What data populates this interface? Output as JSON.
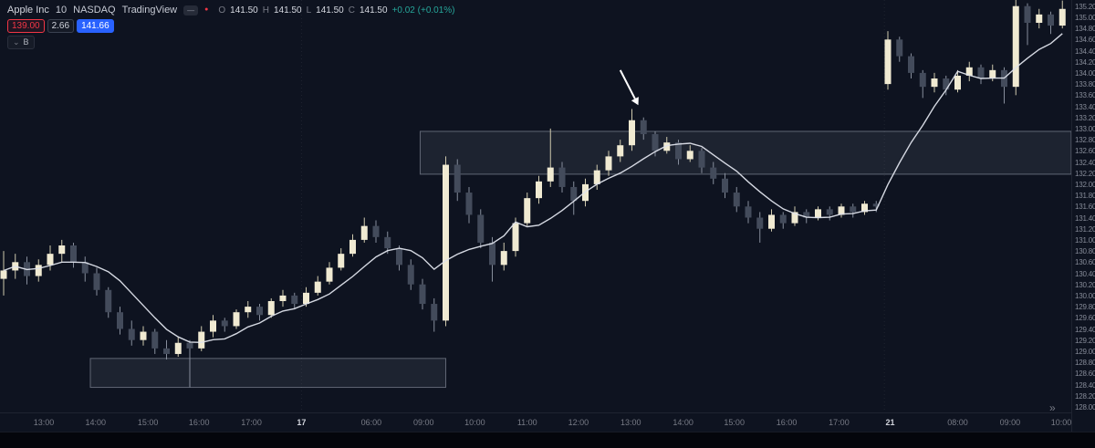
{
  "header": {
    "symbol": "Apple Inc",
    "interval": "10",
    "exchange": "NASDAQ",
    "brand": "TradingView",
    "ohlc": {
      "o_label": "O",
      "o": "141.50",
      "h_label": "H",
      "h": "141.50",
      "l_label": "L",
      "l": "141.50",
      "c_label": "C",
      "c": "141.50",
      "change": "+0.02 (+0.01%)"
    },
    "chips": {
      "stop": "139.00",
      "qty": "2.66",
      "target": "141.66"
    },
    "collapsed_pill": "B"
  },
  "icons": {
    "dash": "—",
    "dot": "●",
    "chevron_down": "⌄",
    "double_chevron_right": "»"
  },
  "colors": {
    "bg": "#0e1320",
    "up": "#f0ead2",
    "down": "#434b5b",
    "up_wick": "#cfc9ad",
    "down_wick": "#878e9c",
    "ma": "#dfe3ec",
    "zone_fill": "rgba(170,178,192,0.10)",
    "zone_stroke": "rgba(170,178,192,0.50)",
    "arrow": "#ffffff",
    "accent_blue": "#2962ff",
    "red": "#f23645",
    "green": "#26a69a"
  },
  "chart_data": {
    "type": "candlestick",
    "title": "Apple Inc · 10 · NASDAQ",
    "ylim": [
      127.9,
      135.31
    ],
    "ma_period": 7,
    "price_ticks": [
      "135.20",
      "135.00",
      "134.80",
      "134.60",
      "134.40",
      "134.20",
      "134.00",
      "133.80",
      "133.60",
      "133.40",
      "133.20",
      "133.00",
      "132.80",
      "132.60",
      "132.40",
      "132.20",
      "132.00",
      "131.80",
      "131.60",
      "131.40",
      "131.20",
      "131.00",
      "130.80",
      "130.60",
      "130.40",
      "130.20",
      "130.00",
      "129.80",
      "129.60",
      "129.40",
      "129.20",
      "129.00",
      "128.80",
      "128.60",
      "128.40",
      "128.20",
      "128.00"
    ],
    "time_ticks": [
      {
        "label": "13:00",
        "idx": 3.45
      },
      {
        "label": "14:00",
        "idx": 7.9
      },
      {
        "label": "15:00",
        "idx": 12.4
      },
      {
        "label": "16:00",
        "idx": 16.8
      },
      {
        "label": "17:00",
        "idx": 21.3
      },
      {
        "label": "17",
        "idx": 25.6,
        "major": true
      },
      {
        "label": "06:00",
        "idx": 31.6
      },
      {
        "label": "09:00",
        "idx": 36.1
      },
      {
        "label": "10:00",
        "idx": 40.5
      },
      {
        "label": "11:00",
        "idx": 45.0
      },
      {
        "label": "12:00",
        "idx": 49.4
      },
      {
        "label": "13:00",
        "idx": 53.9
      },
      {
        "label": "14:00",
        "idx": 58.4
      },
      {
        "label": "15:00",
        "idx": 62.8
      },
      {
        "label": "16:00",
        "idx": 67.3
      },
      {
        "label": "17:00",
        "idx": 71.8
      },
      {
        "label": "21",
        "idx": 76.2,
        "major": true
      },
      {
        "label": "08:00",
        "idx": 82.0
      },
      {
        "label": "09:00",
        "idx": 86.5
      },
      {
        "label": "10:00",
        "idx": 90.9
      }
    ],
    "session_breaks": [
      25.6,
      75.7
    ],
    "zones": [
      {
        "name": "supply",
        "idx1": 35.8,
        "idx2": 92.0,
        "price_top": 132.95,
        "price_bottom": 132.18
      },
      {
        "name": "demand",
        "idx1": 7.45,
        "idx2": 38.0,
        "price_top": 128.87,
        "price_bottom": 128.35
      }
    ],
    "arrow": {
      "from_idx": 53.0,
      "from_price": 134.05,
      "to_idx": 54.55,
      "to_price": 133.42
    },
    "candles": [
      [
        130.3,
        130.8,
        130.0,
        130.45
      ],
      [
        130.45,
        130.75,
        130.3,
        130.6
      ],
      [
        130.6,
        130.7,
        130.2,
        130.35
      ],
      [
        130.35,
        130.65,
        130.25,
        130.55
      ],
      [
        130.55,
        130.9,
        130.45,
        130.75
      ],
      [
        130.75,
        131.0,
        130.6,
        130.9
      ],
      [
        130.9,
        130.95,
        130.5,
        130.6
      ],
      [
        130.6,
        130.7,
        130.25,
        130.4
      ],
      [
        130.4,
        130.5,
        130.0,
        130.1
      ],
      [
        130.1,
        130.15,
        129.6,
        129.7
      ],
      [
        129.7,
        129.8,
        129.3,
        129.4
      ],
      [
        129.4,
        129.55,
        129.1,
        129.2
      ],
      [
        129.2,
        129.45,
        129.1,
        129.35
      ],
      [
        129.35,
        129.4,
        128.95,
        129.05
      ],
      [
        129.05,
        129.2,
        128.85,
        128.95
      ],
      [
        128.95,
        129.25,
        128.9,
        129.15
      ],
      [
        129.15,
        129.2,
        128.35,
        129.05
      ],
      [
        129.05,
        129.45,
        129.0,
        129.35
      ],
      [
        129.35,
        129.65,
        129.25,
        129.55
      ],
      [
        129.55,
        129.6,
        129.35,
        129.45
      ],
      [
        129.45,
        129.75,
        129.4,
        129.7
      ],
      [
        129.7,
        129.9,
        129.6,
        129.8
      ],
      [
        129.8,
        129.85,
        129.55,
        129.65
      ],
      [
        129.65,
        129.95,
        129.6,
        129.9
      ],
      [
        129.9,
        130.1,
        129.8,
        130.0
      ],
      [
        130.0,
        130.05,
        129.75,
        129.85
      ],
      [
        129.85,
        130.15,
        129.8,
        130.05
      ],
      [
        130.05,
        130.35,
        130.0,
        130.25
      ],
      [
        130.25,
        130.6,
        130.2,
        130.5
      ],
      [
        130.5,
        130.85,
        130.45,
        130.75
      ],
      [
        130.75,
        131.1,
        130.7,
        131.0
      ],
      [
        131.0,
        131.4,
        130.95,
        131.25
      ],
      [
        131.25,
        131.35,
        130.95,
        131.05
      ],
      [
        131.05,
        131.15,
        130.75,
        130.85
      ],
      [
        130.85,
        130.9,
        130.45,
        130.55
      ],
      [
        130.55,
        130.65,
        130.1,
        130.2
      ],
      [
        130.2,
        130.3,
        129.75,
        129.85
      ],
      [
        129.85,
        129.95,
        129.35,
        129.55
      ],
      [
        129.55,
        132.5,
        129.45,
        132.35
      ],
      [
        132.35,
        132.45,
        131.7,
        131.85
      ],
      [
        131.85,
        131.95,
        131.3,
        131.45
      ],
      [
        131.45,
        131.55,
        130.85,
        130.95
      ],
      [
        130.95,
        131.05,
        130.25,
        130.55
      ],
      [
        130.55,
        130.95,
        130.45,
        130.8
      ],
      [
        130.8,
        131.4,
        130.7,
        131.3
      ],
      [
        131.3,
        131.85,
        131.25,
        131.75
      ],
      [
        131.75,
        132.15,
        131.65,
        132.05
      ],
      [
        132.05,
        133.0,
        131.95,
        132.3
      ],
      [
        132.3,
        132.4,
        131.85,
        131.95
      ],
      [
        131.95,
        132.05,
        131.45,
        131.7
      ],
      [
        131.7,
        132.1,
        131.6,
        132.0
      ],
      [
        132.0,
        132.35,
        131.9,
        132.25
      ],
      [
        132.25,
        132.6,
        132.15,
        132.5
      ],
      [
        132.5,
        132.8,
        132.4,
        132.7
      ],
      [
        132.7,
        133.35,
        132.6,
        133.15
      ],
      [
        133.15,
        133.2,
        132.8,
        132.9
      ],
      [
        132.9,
        132.95,
        132.5,
        132.6
      ],
      [
        132.6,
        132.85,
        132.55,
        132.75
      ],
      [
        132.75,
        132.8,
        132.35,
        132.45
      ],
      [
        132.45,
        132.7,
        132.4,
        132.6
      ],
      [
        132.6,
        132.65,
        132.2,
        132.3
      ],
      [
        132.3,
        132.4,
        132.0,
        132.1
      ],
      [
        132.1,
        132.2,
        131.75,
        131.85
      ],
      [
        131.85,
        131.95,
        131.5,
        131.6
      ],
      [
        131.6,
        131.7,
        131.3,
        131.4
      ],
      [
        131.4,
        131.5,
        130.95,
        131.2
      ],
      [
        131.2,
        131.55,
        131.15,
        131.45
      ],
      [
        131.45,
        131.5,
        131.2,
        131.3
      ],
      [
        131.3,
        131.6,
        131.25,
        131.5
      ],
      [
        131.5,
        131.55,
        131.3,
        131.4
      ],
      [
        131.4,
        131.6,
        131.35,
        131.55
      ],
      [
        131.55,
        131.6,
        131.35,
        131.45
      ],
      [
        131.45,
        131.65,
        131.4,
        131.6
      ],
      [
        131.6,
        131.65,
        131.4,
        131.5
      ],
      [
        131.5,
        131.7,
        131.45,
        131.65
      ],
      [
        131.65,
        131.7,
        131.5,
        131.6
      ],
      [
        133.8,
        134.75,
        133.7,
        134.6
      ],
      [
        134.6,
        134.65,
        134.2,
        134.3
      ],
      [
        134.3,
        134.35,
        133.9,
        134.0
      ],
      [
        134.0,
        134.05,
        133.55,
        133.75
      ],
      [
        133.75,
        134.0,
        133.65,
        133.9
      ],
      [
        133.9,
        133.95,
        133.6,
        133.7
      ],
      [
        133.7,
        134.05,
        133.65,
        133.95
      ],
      [
        133.95,
        134.2,
        133.85,
        134.1
      ],
      [
        134.1,
        134.15,
        133.8,
        133.9
      ],
      [
        133.9,
        134.15,
        133.85,
        134.05
      ],
      [
        134.05,
        134.1,
        133.45,
        133.75
      ],
      [
        133.75,
        135.35,
        133.6,
        135.2
      ],
      [
        135.2,
        135.25,
        134.5,
        134.9
      ],
      [
        134.9,
        135.15,
        134.8,
        135.05
      ],
      [
        135.05,
        135.1,
        134.7,
        134.85
      ],
      [
        134.85,
        135.3,
        134.8,
        135.15
      ]
    ]
  }
}
